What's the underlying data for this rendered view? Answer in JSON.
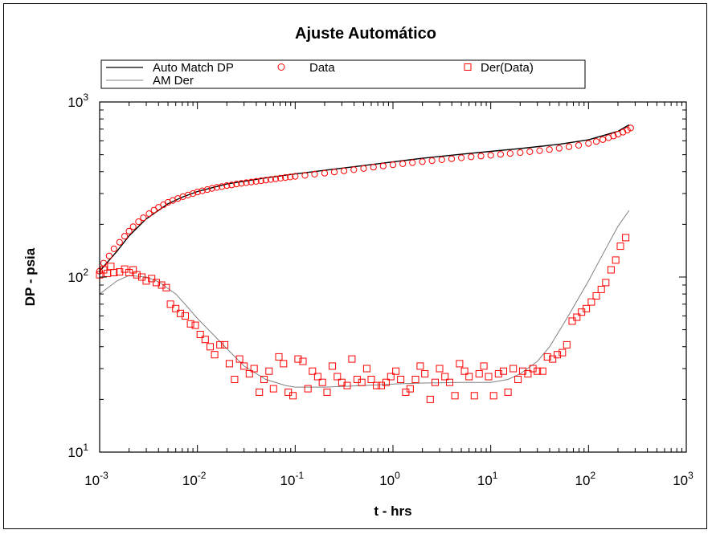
{
  "chart_data": {
    "type": "scatter",
    "title": "Ajuste Automático",
    "xlabel": "t - hrs",
    "ylabel": "DP - psia",
    "x_scale": "log",
    "y_scale": "log",
    "xlim": [
      0.001,
      1000
    ],
    "ylim": [
      10,
      1000
    ],
    "x_ticks": [
      {
        "base": "10",
        "exp": "-3"
      },
      {
        "base": "10",
        "exp": "-2"
      },
      {
        "base": "10",
        "exp": "-1"
      },
      {
        "base": "10",
        "exp": "0"
      },
      {
        "base": "10",
        "exp": "1"
      },
      {
        "base": "10",
        "exp": "2"
      },
      {
        "base": "10",
        "exp": "3"
      }
    ],
    "y_ticks": [
      {
        "base": "10",
        "exp": "1"
      },
      {
        "base": "10",
        "exp": "2"
      },
      {
        "base": "10",
        "exp": "3"
      }
    ],
    "grid": false,
    "legend_position": "top",
    "legend": [
      {
        "name": "Auto Match DP",
        "style": "line",
        "color": "#000000"
      },
      {
        "name": "Data",
        "style": "circle",
        "color": "#ff0000"
      },
      {
        "name": "Der(Data)",
        "style": "square",
        "color": "#ff0000"
      },
      {
        "name": "AM Der",
        "style": "line",
        "color": "#808080"
      }
    ],
    "series": [
      {
        "name": "Auto Match DP",
        "kind": "line",
        "color": "#000000",
        "x": [
          0.001,
          0.0015,
          0.002,
          0.003,
          0.005,
          0.007,
          0.01,
          0.02,
          0.05,
          0.1,
          0.2,
          0.5,
          1,
          2,
          5,
          10,
          20,
          50,
          100,
          200,
          260
        ],
        "y": [
          108,
          140,
          172,
          215,
          262,
          286,
          308,
          340,
          368,
          388,
          407,
          433,
          455,
          477,
          503,
          522,
          542,
          573,
          608,
          680,
          740
        ]
      },
      {
        "name": "AM Der",
        "kind": "line",
        "color": "#808080",
        "x": [
          0.001,
          0.0015,
          0.002,
          0.003,
          0.004,
          0.006,
          0.008,
          0.01,
          0.015,
          0.02,
          0.03,
          0.05,
          0.08,
          0.1,
          0.2,
          0.5,
          1,
          2,
          5,
          10,
          15,
          20,
          30,
          40,
          60,
          100,
          150,
          200,
          260
        ],
        "y": [
          80,
          95,
          102,
          100,
          94,
          80,
          67,
          58,
          46,
          39,
          31,
          26,
          24,
          23.5,
          23.5,
          24,
          24.5,
          24.8,
          25,
          25,
          26,
          28,
          33,
          40,
          58,
          95,
          145,
          195,
          240
        ]
      },
      {
        "name": "Data",
        "kind": "circle",
        "color": "#ff0000",
        "x": [
          0.001,
          0.0011,
          0.00125,
          0.0014,
          0.0016,
          0.0018,
          0.002,
          0.0022,
          0.0025,
          0.0028,
          0.0032,
          0.0036,
          0.004,
          0.0045,
          0.005,
          0.0056,
          0.0063,
          0.0071,
          0.008,
          0.009,
          0.01,
          0.0112,
          0.0126,
          0.0141,
          0.0158,
          0.0178,
          0.02,
          0.0224,
          0.0251,
          0.0282,
          0.0316,
          0.0355,
          0.0398,
          0.0447,
          0.0501,
          0.0562,
          0.0631,
          0.0708,
          0.0794,
          0.0891,
          0.1,
          0.126,
          0.158,
          0.2,
          0.251,
          0.316,
          0.398,
          0.501,
          0.631,
          0.794,
          1,
          1.26,
          1.58,
          2,
          2.51,
          3.16,
          3.98,
          5.01,
          6.31,
          7.94,
          10,
          12.6,
          15.8,
          20,
          25.1,
          31.6,
          39.8,
          50.1,
          63.1,
          79.4,
          100,
          120,
          140,
          160,
          180,
          200,
          225,
          250,
          270
        ],
        "y": [
          108,
          120,
          132,
          145,
          158,
          171,
          183,
          194,
          207,
          218,
          230,
          241,
          250,
          259,
          267,
          274,
          281,
          288,
          294,
          300,
          306,
          311,
          316,
          321,
          325,
          329,
          333,
          336,
          340,
          343,
          346,
          349,
          352,
          355,
          358,
          361,
          364,
          367,
          370,
          373,
          376,
          381,
          387,
          392,
          398,
          404,
          410,
          417,
          424,
          431,
          438,
          444,
          450,
          456,
          462,
          468,
          474,
          480,
          486,
          491,
          496,
          502,
          508,
          514,
          520,
          527,
          535,
          544,
          555,
          566,
          580,
          595,
          610,
          625,
          640,
          655,
          672,
          690,
          710
        ]
      },
      {
        "name": "Der(Data)",
        "kind": "square",
        "color": "#ff0000",
        "x": [
          0.001,
          0.0011,
          0.0012,
          0.0013,
          0.0014,
          0.0016,
          0.0018,
          0.002,
          0.0022,
          0.0024,
          0.0027,
          0.003,
          0.0034,
          0.0038,
          0.0043,
          0.0048,
          0.0053,
          0.006,
          0.0067,
          0.0075,
          0.0085,
          0.0095,
          0.0107,
          0.012,
          0.0135,
          0.015,
          0.017,
          0.019,
          0.0212,
          0.024,
          0.027,
          0.03,
          0.034,
          0.038,
          0.043,
          0.048,
          0.054,
          0.06,
          0.068,
          0.076,
          0.085,
          0.095,
          0.107,
          0.12,
          0.135,
          0.15,
          0.17,
          0.19,
          0.212,
          0.24,
          0.27,
          0.3,
          0.34,
          0.38,
          0.43,
          0.48,
          0.54,
          0.6,
          0.68,
          0.76,
          0.85,
          0.95,
          1.07,
          1.2,
          1.35,
          1.5,
          1.7,
          1.9,
          2.12,
          2.4,
          2.7,
          3,
          3.4,
          3.8,
          4.3,
          4.8,
          5.4,
          6,
          6.8,
          7.6,
          8.5,
          9.5,
          10.7,
          12,
          13.5,
          15,
          17,
          19,
          21.2,
          24,
          27,
          30,
          34,
          38,
          43,
          48,
          54,
          60,
          68,
          76,
          85,
          95,
          107,
          120,
          135,
          150,
          170,
          190,
          212,
          240
        ],
        "y": [
          103,
          110,
          105,
          115,
          106,
          107,
          111,
          106,
          110,
          103,
          100,
          95,
          98,
          93,
          90,
          87,
          70,
          66,
          62,
          60,
          54,
          53,
          47,
          44,
          40,
          36,
          41,
          41,
          32,
          26,
          34,
          31,
          28,
          30,
          22,
          26,
          29,
          23,
          35,
          32,
          22,
          21,
          34,
          33,
          23,
          29,
          27,
          25,
          22,
          31,
          27,
          25,
          24,
          34,
          26,
          25,
          30,
          26,
          24,
          24,
          25,
          27,
          29,
          26,
          22,
          23,
          26,
          31,
          28,
          20,
          25,
          30,
          27,
          25,
          21,
          32,
          29,
          27,
          21,
          28,
          31,
          27,
          21,
          28,
          29,
          22,
          30,
          26,
          29,
          28,
          30,
          29,
          29,
          35,
          34,
          36,
          37,
          41,
          56,
          59,
          63,
          66,
          72,
          78,
          85,
          93,
          110,
          125,
          150,
          168
        ]
      }
    ]
  }
}
